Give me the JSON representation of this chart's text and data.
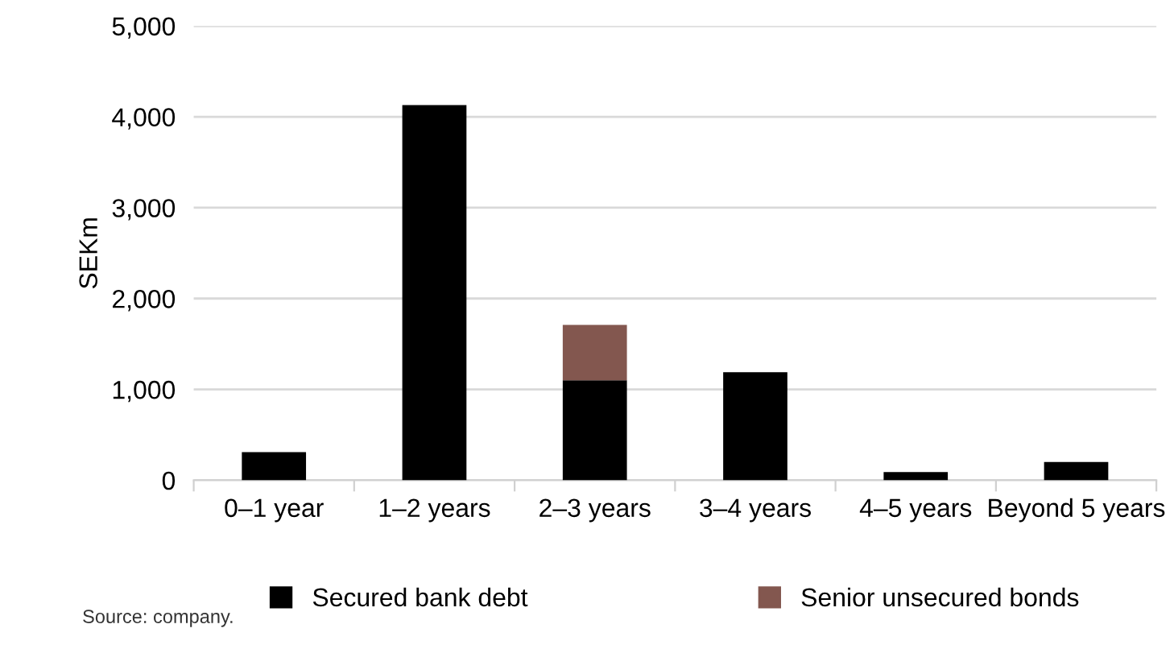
{
  "chart_data": {
    "type": "bar",
    "stacked": true,
    "ylabel": "SEKm",
    "categories": [
      "0–1 year",
      "1–2 years",
      "2–3 years",
      "3–4 years",
      "4–5 years",
      "Beyond 5 years"
    ],
    "series": [
      {
        "name": "Secured bank debt",
        "color": "#000000",
        "values": [
          310,
          4130,
          1100,
          1190,
          90,
          200
        ]
      },
      {
        "name": "Senior unsecured bonds",
        "color": "#83574f",
        "values": [
          null,
          null,
          610,
          null,
          null,
          null
        ]
      }
    ],
    "ylim": [
      0,
      5000
    ],
    "yticks": [
      {
        "value": 0,
        "label": "0"
      },
      {
        "value": 1000,
        "label": "1,000"
      },
      {
        "value": 2000,
        "label": "2,000"
      },
      {
        "value": 3000,
        "label": "3,000"
      },
      {
        "value": 4000,
        "label": "4,000"
      },
      {
        "value": 5000,
        "label": "5,000"
      }
    ],
    "grid": "y",
    "legend": "bottom",
    "annotations": [
      "Source: company."
    ]
  }
}
